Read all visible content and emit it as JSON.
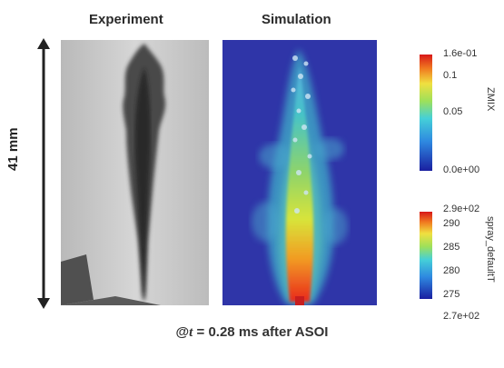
{
  "titles": {
    "experiment": "Experiment",
    "simulation": "Simulation"
  },
  "scale_label": "41 mm",
  "caption": {
    "prefix": "@",
    "var": "t",
    "eq": " = ",
    "value": "0.28",
    "suffix": " ms after ASOI"
  },
  "colorbar_zmix": {
    "title": "ZMIX",
    "ticks": [
      "1.6e-01",
      "0.1",
      "0.05",
      "0.0e+00"
    ],
    "tick_values": [
      0.16,
      0.1,
      0.05,
      0.0
    ]
  },
  "colorbar_temp": {
    "title": "spray_defaultT",
    "ticks": [
      "2.9e+02",
      "290",
      "285",
      "280",
      "275",
      "2.7e+02"
    ],
    "tick_values": [
      290,
      290,
      285,
      280,
      275,
      270
    ]
  },
  "colors": {
    "sim_background": "#2f35a8",
    "exp_background": "#c9c9c9"
  }
}
